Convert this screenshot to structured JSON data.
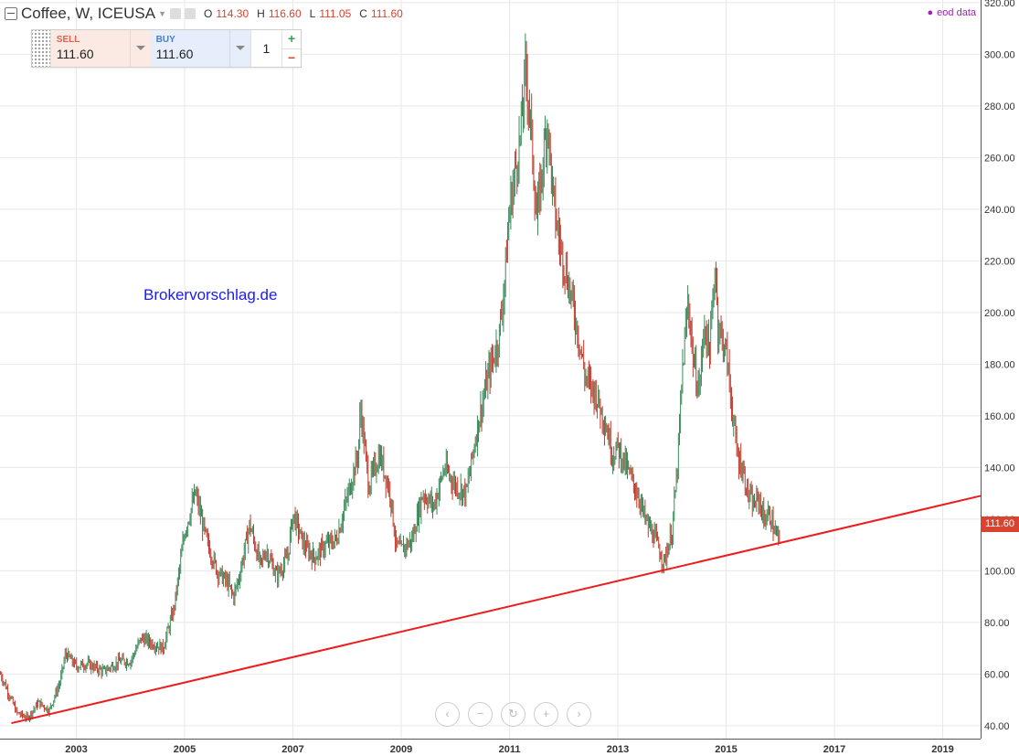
{
  "header": {
    "symbol": "Coffee, W, ICEUSA",
    "ohlc": [
      {
        "k": "O",
        "v": "114.30"
      },
      {
        "k": "H",
        "v": "116.60"
      },
      {
        "k": "L",
        "v": "111.05"
      },
      {
        "k": "C",
        "v": "111.60"
      }
    ],
    "eod_label": "eod data"
  },
  "trade_panel": {
    "sell_label": "SELL",
    "sell_price": "111.60",
    "buy_label": "BUY",
    "buy_price": "111.60",
    "quantity": "1",
    "plus": "+",
    "minus": "−"
  },
  "watermark": "Brokervorschlag.de",
  "last_price_tag": "111.60",
  "nav_icons": [
    "chevron-left-icon",
    "zoom-out-icon",
    "reset-icon",
    "zoom-in-icon",
    "chevron-right-icon"
  ],
  "colors": {
    "up_candle": "#3a8a5a",
    "down_candle": "#c0392b",
    "trendline": "#ee1c1c",
    "price_tag": "#d94431",
    "watermark": "#1a1aff"
  },
  "chart_data": {
    "type": "candlestick",
    "interval": "weekly",
    "ylim": [
      35,
      321
    ],
    "xlim": [
      2001.59,
      2019.7
    ],
    "y_ticks": [
      "40.00",
      "60.00",
      "80.00",
      "100.00",
      "120.00",
      "140.00",
      "160.00",
      "180.00",
      "200.00",
      "220.00",
      "240.00",
      "260.00",
      "280.00",
      "300.00",
      "320.00"
    ],
    "x_ticks": [
      "2003",
      "2005",
      "2007",
      "2009",
      "2011",
      "2013",
      "2015",
      "2017",
      "2019"
    ],
    "x_tick_years": [
      2003,
      2005,
      2007,
      2009,
      2011,
      2013,
      2015,
      2017,
      2019
    ],
    "close_path": [
      [
        2001.6,
        60
      ],
      [
        2001.9,
        45
      ],
      [
        2002.1,
        43
      ],
      [
        2002.3,
        49
      ],
      [
        2002.5,
        46
      ],
      [
        2002.7,
        57
      ],
      [
        2002.8,
        68
      ],
      [
        2003.0,
        63
      ],
      [
        2003.2,
        64
      ],
      [
        2003.5,
        61
      ],
      [
        2003.8,
        65
      ],
      [
        2004.0,
        65
      ],
      [
        2004.2,
        74
      ],
      [
        2004.4,
        72
      ],
      [
        2004.6,
        70
      ],
      [
        2004.8,
        85
      ],
      [
        2005.0,
        115
      ],
      [
        2005.2,
        130
      ],
      [
        2005.4,
        112
      ],
      [
        2005.6,
        100
      ],
      [
        2005.8,
        95
      ],
      [
        2005.9,
        90
      ],
      [
        2006.0,
        97
      ],
      [
        2006.2,
        118
      ],
      [
        2006.4,
        102
      ],
      [
        2006.5,
        108
      ],
      [
        2006.7,
        98
      ],
      [
        2006.9,
        105
      ],
      [
        2007.0,
        122
      ],
      [
        2007.2,
        110
      ],
      [
        2007.4,
        105
      ],
      [
        2007.6,
        110
      ],
      [
        2007.8,
        112
      ],
      [
        2008.0,
        128
      ],
      [
        2008.2,
        145
      ],
      [
        2008.25,
        163
      ],
      [
        2008.4,
        133
      ],
      [
        2008.6,
        145
      ],
      [
        2008.8,
        130
      ],
      [
        2008.9,
        110
      ],
      [
        2009.0,
        108
      ],
      [
        2009.2,
        112
      ],
      [
        2009.4,
        130
      ],
      [
        2009.6,
        125
      ],
      [
        2009.8,
        140
      ],
      [
        2010.0,
        133
      ],
      [
        2010.2,
        130
      ],
      [
        2010.4,
        155
      ],
      [
        2010.6,
        175
      ],
      [
        2010.8,
        190
      ],
      [
        2010.9,
        210
      ],
      [
        2011.0,
        240
      ],
      [
        2011.2,
        268
      ],
      [
        2011.3,
        295
      ],
      [
        2011.4,
        270
      ],
      [
        2011.5,
        235
      ],
      [
        2011.7,
        275
      ],
      [
        2011.8,
        245
      ],
      [
        2011.9,
        230
      ],
      [
        2012.0,
        220
      ],
      [
        2012.2,
        200
      ],
      [
        2012.4,
        175
      ],
      [
        2012.6,
        168
      ],
      [
        2012.8,
        155
      ],
      [
        2012.9,
        145
      ],
      [
        2013.0,
        148
      ],
      [
        2013.2,
        138
      ],
      [
        2013.4,
        128
      ],
      [
        2013.5,
        120
      ],
      [
        2013.7,
        112
      ],
      [
        2013.85,
        103
      ],
      [
        2014.0,
        115
      ],
      [
        2014.1,
        140
      ],
      [
        2014.2,
        180
      ],
      [
        2014.3,
        205
      ],
      [
        2014.4,
        180
      ],
      [
        2014.5,
        170
      ],
      [
        2014.6,
        195
      ],
      [
        2014.7,
        185
      ],
      [
        2014.8,
        220
      ],
      [
        2014.85,
        195
      ],
      [
        2015.0,
        185
      ],
      [
        2015.1,
        165
      ],
      [
        2015.2,
        145
      ],
      [
        2015.3,
        140
      ],
      [
        2015.4,
        130
      ],
      [
        2015.5,
        125
      ],
      [
        2015.6,
        128
      ],
      [
        2015.7,
        120
      ],
      [
        2015.8,
        122
      ],
      [
        2015.9,
        115
      ],
      [
        2016.0,
        111.6
      ]
    ],
    "trendline": [
      [
        2001.8,
        41
      ],
      [
        2019.7,
        129
      ]
    ],
    "last_price": 111.6
  }
}
